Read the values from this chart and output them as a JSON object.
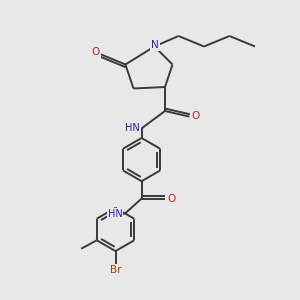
{
  "bg_color": "#e8e8e8",
  "bond_color": "#3a3a3a",
  "atom_colors": {
    "N": "#2222cc",
    "O": "#cc2222",
    "Br": "#994400",
    "C": "#3a3a3a"
  },
  "figsize": [
    3.0,
    3.0
  ],
  "dpi": 100,
  "lw": 1.4,
  "fs": 7.0
}
